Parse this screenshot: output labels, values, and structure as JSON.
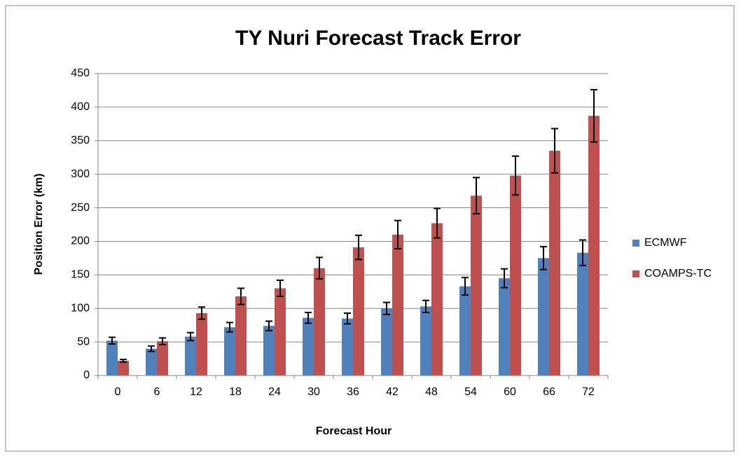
{
  "chart_data": {
    "type": "bar",
    "title": "TY Nuri Forecast Track Error",
    "x_label": "Forecast Hour",
    "y_label": "Position Error (km)",
    "categories": [
      "0",
      "6",
      "12",
      "18",
      "24",
      "30",
      "36",
      "42",
      "48",
      "54",
      "60",
      "66",
      "72"
    ],
    "series": [
      {
        "name": "ECMWF",
        "color": "#4f81bd",
        "values": [
          52,
          40,
          58,
          72,
          74,
          86,
          85,
          100,
          103,
          133,
          145,
          175,
          183
        ],
        "errors": [
          5,
          4,
          6,
          7,
          7,
          8,
          8,
          9,
          9,
          13,
          14,
          17,
          19
        ]
      },
      {
        "name": "COAMPS-TC",
        "color": "#c0504d",
        "values": [
          22,
          51,
          93,
          118,
          130,
          160,
          191,
          210,
          227,
          268,
          298,
          335,
          387
        ],
        "errors": [
          2,
          5,
          9,
          12,
          12,
          16,
          18,
          21,
          22,
          27,
          29,
          33,
          39
        ]
      }
    ],
    "ylim": [
      0,
      450
    ],
    "yticks": [
      0,
      50,
      100,
      150,
      200,
      250,
      300,
      350,
      400,
      450
    ],
    "grid": true,
    "legend": "right"
  }
}
